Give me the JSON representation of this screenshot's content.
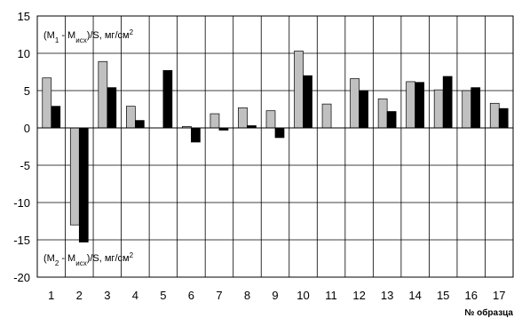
{
  "chart_data": {
    "type": "bar",
    "categories": [
      "1",
      "2",
      "3",
      "4",
      "5",
      "6",
      "7",
      "8",
      "9",
      "10",
      "11",
      "12",
      "13",
      "14",
      "15",
      "16",
      "17"
    ],
    "series": [
      {
        "color": "#c0c0c0",
        "values": [
          6.7,
          -13.0,
          8.9,
          2.9,
          0,
          0.2,
          1.9,
          2.7,
          2.3,
          10.3,
          3.2,
          6.6,
          3.9,
          6.2,
          5.1,
          5.0,
          3.3
        ]
      },
      {
        "color": "#000000",
        "values": [
          2.9,
          -15.3,
          5.4,
          1.0,
          7.7,
          -1.9,
          -0.3,
          0.3,
          -1.3,
          7.0,
          0,
          5.0,
          2.2,
          6.1,
          6.9,
          5.4,
          2.6
        ]
      }
    ],
    "ylim": [
      -20,
      15
    ],
    "yticks": [
      15,
      10,
      5,
      0,
      -5,
      -10,
      -15,
      -20
    ],
    "xlabel": "№ образца",
    "annotations": {
      "top": {
        "pre": "(M",
        "sub": "1",
        "mid": " - M",
        "sub2": "исх",
        "post": ")/S, мг/см",
        "sup": "2"
      },
      "bottom": {
        "pre": "(M",
        "sub": "2",
        "mid": " - M",
        "sub2": "исх",
        "post": ")/S, мг/см",
        "sup": "2"
      }
    },
    "grid": true
  }
}
